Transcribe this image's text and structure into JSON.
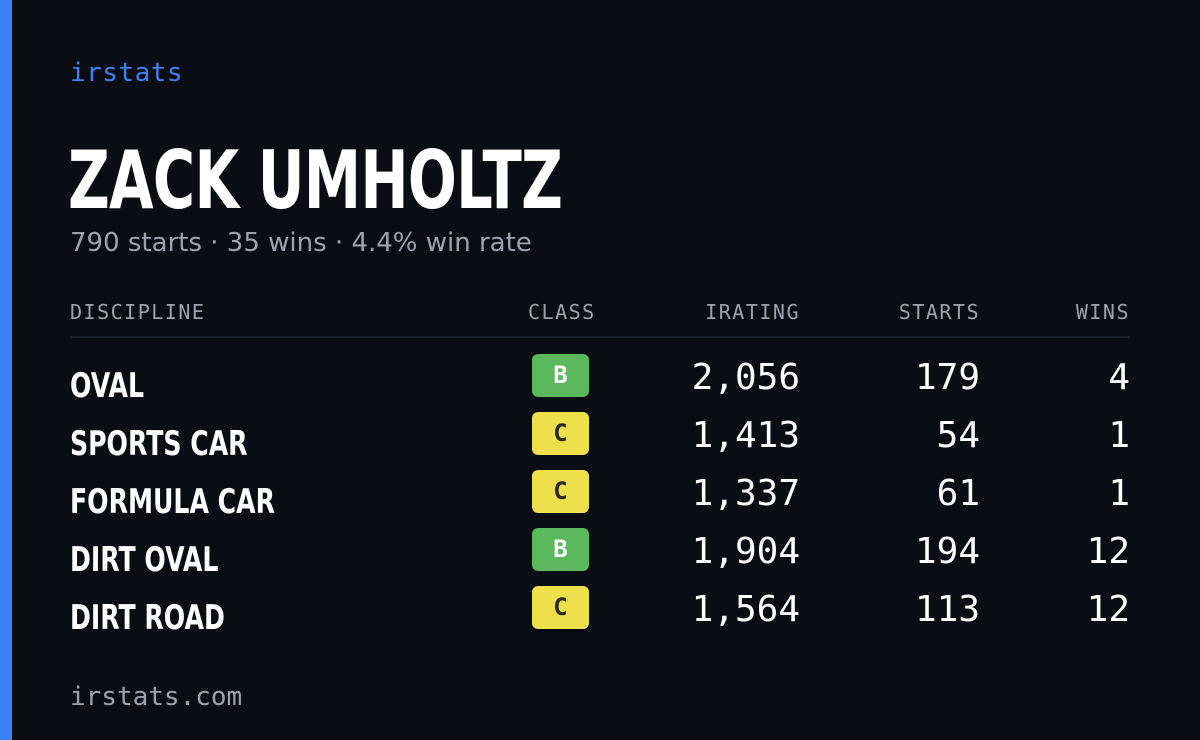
{
  "brand": "irstats",
  "player": {
    "name": "ZACK UMHOLTZ",
    "summary": "790 starts · 35 wins · 4.4% win rate"
  },
  "table": {
    "headers": {
      "discipline": "DISCIPLINE",
      "class": "CLASS",
      "irating": "IRATING",
      "starts": "STARTS",
      "wins": "WINS"
    },
    "rows": [
      {
        "discipline": "OVAL",
        "class": "B",
        "irating": "2,056",
        "starts": "179",
        "wins": "4"
      },
      {
        "discipline": "SPORTS CAR",
        "class": "C",
        "irating": "1,413",
        "starts": "54",
        "wins": "1"
      },
      {
        "discipline": "FORMULA CAR",
        "class": "C",
        "irating": "1,337",
        "starts": "61",
        "wins": "1"
      },
      {
        "discipline": "DIRT OVAL",
        "class": "B",
        "irating": "1,904",
        "starts": "194",
        "wins": "12"
      },
      {
        "discipline": "DIRT ROAD",
        "class": "C",
        "irating": "1,564",
        "starts": "113",
        "wins": "12"
      }
    ]
  },
  "footer": "irstats.com",
  "colors": {
    "accent": "#3b82f6",
    "background": "#0b0d14",
    "class_b": "#5cb85c",
    "class_c": "#ede04a",
    "muted_text": "#9ca3af"
  }
}
